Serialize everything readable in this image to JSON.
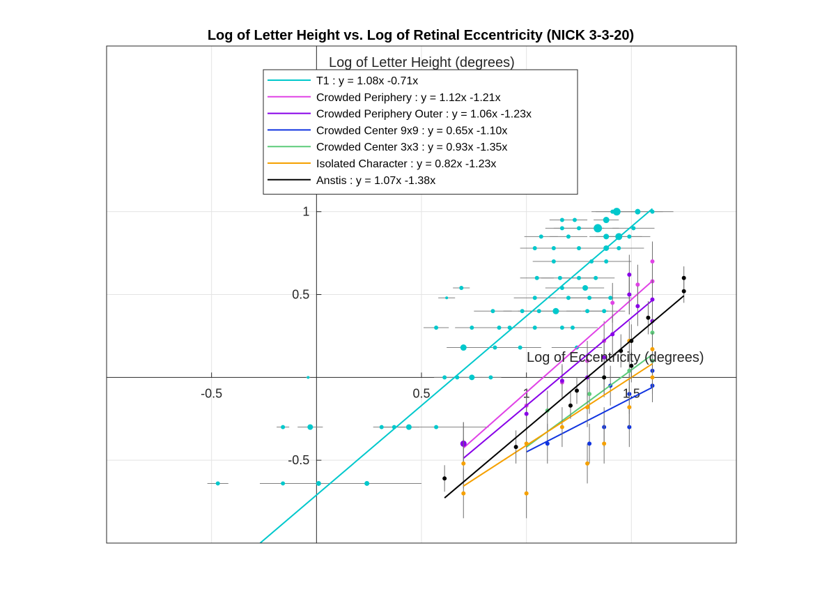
{
  "chart_data": {
    "type": "scatter",
    "title": "Log of Letter Height vs. Log of Retinal Eccentricity (NICK 3-3-20)",
    "xlabel": "Log of Eccentricity (degrees)",
    "ylabel": "Log of Letter Height (degrees)",
    "xlim": [
      -1,
      2
    ],
    "ylim": [
      -1,
      2
    ],
    "grid": true,
    "axes_through_origin": true,
    "x_ticks": [
      {
        "v": -0.5,
        "label": "-0.5"
      },
      {
        "v": 0.5,
        "label": "0.5"
      },
      {
        "v": 1,
        "label": "1"
      },
      {
        "v": 1.5,
        "label": "1.5"
      }
    ],
    "y_ticks": [
      {
        "v": -0.5,
        "label": "-0.5"
      },
      {
        "v": 0.5,
        "label": "0.5"
      },
      {
        "v": 1,
        "label": "1"
      }
    ],
    "legend_position": "top-center",
    "series": [
      {
        "name": "T1",
        "legend": "T1 : y = 1.08x -0.71x",
        "color": "#00c8cc",
        "fit": {
          "slope": 1.08,
          "intercept": -0.71,
          "x_range": [
            -0.27,
            1.6
          ]
        },
        "points": [
          {
            "x": -0.47,
            "y": -0.64,
            "xerr": 0.05,
            "s": 3
          },
          {
            "x": -0.16,
            "y": -0.64,
            "xerr": 0.1,
            "s": 3
          },
          {
            "x": 0.01,
            "y": -0.64,
            "xerr": 0.28,
            "s": 3.5
          },
          {
            "x": 0.24,
            "y": -0.64,
            "xerr": 0.26,
            "s": 3.5
          },
          {
            "x": -0.16,
            "y": -0.3,
            "xerr": 0.03,
            "s": 3
          },
          {
            "x": -0.03,
            "y": -0.3,
            "xerr": 0.06,
            "s": 4
          },
          {
            "x": 0.31,
            "y": -0.3,
            "xerr": 0.04,
            "s": 3
          },
          {
            "x": 0.37,
            "y": -0.3,
            "xerr": 0.05,
            "s": 3
          },
          {
            "x": 0.44,
            "y": -0.3,
            "xerr": 0.05,
            "s": 4
          },
          {
            "x": 0.57,
            "y": -0.3,
            "xerr": 0.25,
            "s": 3
          },
          {
            "x": 0.61,
            "y": 0,
            "xerr": 0.05,
            "s": 3
          },
          {
            "x": 0.67,
            "y": 0,
            "xerr": 0.05,
            "s": 3
          },
          {
            "x": 0.74,
            "y": 0,
            "xerr": 0.05,
            "s": 4
          },
          {
            "x": 0.83,
            "y": 0,
            "xerr": 0.05,
            "s": 3
          },
          {
            "x": -0.04,
            "y": 0,
            "xerr": 0.01,
            "s": 2
          },
          {
            "x": 0.57,
            "y": 0.3,
            "xerr": 0.06,
            "s": 3
          },
          {
            "x": 0.74,
            "y": 0.3,
            "xerr": 0.08,
            "s": 3
          },
          {
            "x": 0.87,
            "y": 0.3,
            "xerr": 0.09,
            "s": 3
          },
          {
            "x": 0.92,
            "y": 0.3,
            "xerr": 0.09,
            "s": 3
          },
          {
            "x": 1.04,
            "y": 0.3,
            "xerr": 0.12,
            "s": 3
          },
          {
            "x": 1.17,
            "y": 0.3,
            "xerr": 0.11,
            "s": 3
          },
          {
            "x": 1.22,
            "y": 0.3,
            "xerr": 0.12,
            "s": 3
          },
          {
            "x": 0.7,
            "y": 0.18,
            "xerr": 0.08,
            "s": 4.5
          },
          {
            "x": 0.85,
            "y": 0.18,
            "xerr": 0.08,
            "s": 3
          },
          {
            "x": 0.97,
            "y": 0.18,
            "xerr": 0.1,
            "s": 3
          },
          {
            "x": 1.24,
            "y": 0.18,
            "xerr": 0.12,
            "s": 3
          },
          {
            "x": 0.84,
            "y": 0.4,
            "xerr": 0.09,
            "s": 3
          },
          {
            "x": 0.98,
            "y": 0.4,
            "xerr": 0.09,
            "s": 3
          },
          {
            "x": 1.06,
            "y": 0.4,
            "xerr": 0.1,
            "s": 3
          },
          {
            "x": 1.14,
            "y": 0.4,
            "xerr": 0.12,
            "s": 4.5
          },
          {
            "x": 1.29,
            "y": 0.4,
            "xerr": 0.1,
            "s": 3
          },
          {
            "x": 1.37,
            "y": 0.4,
            "xerr": 0.1,
            "s": 3
          },
          {
            "x": 1.04,
            "y": 0.48,
            "xerr": 0.1,
            "s": 3
          },
          {
            "x": 1.2,
            "y": 0.48,
            "xerr": 0.1,
            "s": 3
          },
          {
            "x": 1.3,
            "y": 0.48,
            "xerr": 0.1,
            "s": 3
          },
          {
            "x": 1.4,
            "y": 0.48,
            "xerr": 0.1,
            "s": 3
          },
          {
            "x": 1.05,
            "y": 0.6,
            "xerr": 0.08,
            "s": 3
          },
          {
            "x": 1.16,
            "y": 0.6,
            "xerr": 0.09,
            "s": 3
          },
          {
            "x": 1.25,
            "y": 0.6,
            "xerr": 0.08,
            "s": 3
          },
          {
            "x": 1.33,
            "y": 0.6,
            "xerr": 0.09,
            "s": 3
          },
          {
            "x": 1.17,
            "y": 0.54,
            "xerr": 0.08,
            "s": 3
          },
          {
            "x": 1.28,
            "y": 0.54,
            "xerr": 0.09,
            "s": 4
          },
          {
            "x": 1.13,
            "y": 0.7,
            "xerr": 0.1,
            "s": 3
          },
          {
            "x": 1.31,
            "y": 0.7,
            "xerr": 0.12,
            "s": 3
          },
          {
            "x": 1.38,
            "y": 0.7,
            "xerr": 0.12,
            "s": 3
          },
          {
            "x": 1.04,
            "y": 0.78,
            "xerr": 0.07,
            "s": 3
          },
          {
            "x": 1.13,
            "y": 0.78,
            "xerr": 0.09,
            "s": 3
          },
          {
            "x": 1.25,
            "y": 0.78,
            "xerr": 0.1,
            "s": 3
          },
          {
            "x": 1.38,
            "y": 0.78,
            "xerr": 0.11,
            "s": 4
          },
          {
            "x": 1.44,
            "y": 0.78,
            "xerr": 0.12,
            "s": 3
          },
          {
            "x": 1.07,
            "y": 0.85,
            "xerr": 0.08,
            "s": 3
          },
          {
            "x": 1.2,
            "y": 0.85,
            "xerr": 0.09,
            "s": 3
          },
          {
            "x": 1.38,
            "y": 0.85,
            "xerr": 0.08,
            "s": 4
          },
          {
            "x": 1.44,
            "y": 0.85,
            "xerr": 0.11,
            "s": 5
          },
          {
            "x": 1.49,
            "y": 0.85,
            "xerr": 0.1,
            "s": 3
          },
          {
            "x": 1.17,
            "y": 0.9,
            "xerr": 0.08,
            "s": 3
          },
          {
            "x": 1.25,
            "y": 0.9,
            "xerr": 0.12,
            "s": 3
          },
          {
            "x": 1.34,
            "y": 0.9,
            "xerr": 0.1,
            "s": 6
          },
          {
            "x": 1.51,
            "y": 0.9,
            "xerr": 0.1,
            "s": 3
          },
          {
            "x": 1.17,
            "y": 0.95,
            "xerr": 0.06,
            "s": 3
          },
          {
            "x": 1.23,
            "y": 0.95,
            "xerr": 0.06,
            "s": 3
          },
          {
            "x": 1.38,
            "y": 0.95,
            "xerr": 0.06,
            "s": 4.5
          },
          {
            "x": 1.41,
            "y": 1,
            "xerr": 0.1,
            "s": 3
          },
          {
            "x": 1.43,
            "y": 1,
            "xerr": 0.1,
            "s": 5.5
          },
          {
            "x": 1.53,
            "y": 1,
            "xerr": 0.12,
            "s": 4
          },
          {
            "x": 1.6,
            "y": 1,
            "xerr": 0.1,
            "s": 3
          },
          {
            "x": 0.69,
            "y": 0.54,
            "xerr": 0.04,
            "s": 3
          },
          {
            "x": 0.62,
            "y": 0.48,
            "xerr": 0.04,
            "s": 2
          }
        ]
      },
      {
        "name": "Crowded Periphery",
        "legend": "Crowded Periphery : y = 1.12x -1.21x",
        "color": "#e042e6",
        "fit": {
          "slope": 1.12,
          "intercept": -1.21,
          "x_range": [
            0.7,
            1.6
          ]
        },
        "points": [
          {
            "x": 0.7,
            "y": -0.4,
            "yerr": 0.13,
            "s": 3
          },
          {
            "x": 1.0,
            "y": -0.17,
            "yerr": 0.1,
            "s": 3
          },
          {
            "x": 1.17,
            "y": -0.03,
            "yerr": 0.1,
            "s": 3
          },
          {
            "x": 1.29,
            "y": 0.1,
            "yerr": 0.12,
            "s": 3
          },
          {
            "x": 1.37,
            "y": 0.22,
            "yerr": 0.12,
            "s": 3
          },
          {
            "x": 1.41,
            "y": 0.45,
            "yerr": 0.12,
            "s": 3
          },
          {
            "x": 1.49,
            "y": 0.5,
            "yerr": 0.12,
            "s": 3
          },
          {
            "x": 1.53,
            "y": 0.56,
            "yerr": 0.12,
            "s": 3
          },
          {
            "x": 1.6,
            "y": 0.7,
            "yerr": 0.12,
            "s": 3
          },
          {
            "x": 1.6,
            "y": 0.58,
            "yerr": 0.1,
            "s": 3
          }
        ]
      },
      {
        "name": "Crowded Periphery Outer",
        "legend": "Crowded Periphery Outer : y = 1.06x -1.23x",
        "color": "#8800e8",
        "fit": {
          "slope": 1.06,
          "intercept": -1.23,
          "x_range": [
            0.7,
            1.6
          ]
        },
        "points": [
          {
            "x": 0.7,
            "y": -0.4,
            "yerr": 0.13,
            "s": 4.5
          },
          {
            "x": 1.0,
            "y": -0.22,
            "yerr": 0.1,
            "s": 3
          },
          {
            "x": 1.17,
            "y": -0.02,
            "yerr": 0.1,
            "s": 3
          },
          {
            "x": 1.29,
            "y": 0.0,
            "yerr": 0.12,
            "s": 3
          },
          {
            "x": 1.37,
            "y": 0.12,
            "yerr": 0.12,
            "s": 3
          },
          {
            "x": 1.41,
            "y": 0.26,
            "yerr": 0.12,
            "s": 3
          },
          {
            "x": 1.49,
            "y": 0.5,
            "yerr": 0.12,
            "s": 3
          },
          {
            "x": 1.53,
            "y": 0.43,
            "yerr": 0.12,
            "s": 3
          },
          {
            "x": 1.6,
            "y": 0.47,
            "yerr": 0.12,
            "s": 3
          },
          {
            "x": 1.49,
            "y": 0.62,
            "yerr": 0.12,
            "s": 3
          },
          {
            "x": 1.6,
            "y": 0.34,
            "yerr": 0.1,
            "s": 3
          }
        ]
      },
      {
        "name": "Crowded Center 9x9",
        "legend": "Crowded Center 9x9 : y = 0.65x -1.10x",
        "color": "#1034e0",
        "fit": {
          "slope": 0.65,
          "intercept": -1.1,
          "x_range": [
            1.0,
            1.6
          ]
        },
        "points": [
          {
            "x": 1.1,
            "y": -0.4,
            "yerr": 0.12,
            "s": 3
          },
          {
            "x": 1.3,
            "y": -0.4,
            "yerr": 0.12,
            "s": 3
          },
          {
            "x": 1.37,
            "y": -0.3,
            "yerr": 0.12,
            "s": 3
          },
          {
            "x": 1.49,
            "y": -0.3,
            "yerr": 0.12,
            "s": 3
          },
          {
            "x": 1.4,
            "y": -0.05,
            "yerr": 0.12,
            "s": 3
          },
          {
            "x": 1.49,
            "y": -0.1,
            "yerr": 0.12,
            "s": 3
          },
          {
            "x": 1.6,
            "y": -0.05,
            "yerr": 0.1,
            "s": 3
          },
          {
            "x": 1.6,
            "y": 0.04,
            "yerr": 0.1,
            "s": 3
          }
        ]
      },
      {
        "name": "Crowded Center 3x3",
        "legend": "Crowded Center 3x3 : y = 0.93x -1.35x",
        "color": "#5ccb7a",
        "fit": {
          "slope": 0.93,
          "intercept": -1.35,
          "x_range": [
            1.0,
            1.6
          ]
        },
        "points": [
          {
            "x": 1.1,
            "y": -0.2,
            "yerr": 0.12,
            "s": 3
          },
          {
            "x": 1.3,
            "y": -0.1,
            "yerr": 0.12,
            "s": 3
          },
          {
            "x": 1.37,
            "y": 0.0,
            "yerr": 0.12,
            "s": 3
          },
          {
            "x": 1.49,
            "y": 0.04,
            "yerr": 0.12,
            "s": 3
          },
          {
            "x": 1.6,
            "y": 0.27,
            "yerr": 0.12,
            "s": 3
          },
          {
            "x": 1.6,
            "y": 0.1,
            "yerr": 0.1,
            "s": 3
          }
        ]
      },
      {
        "name": "Isolated Character",
        "legend": "Isolated Character : y = 0.82x -1.23x",
        "color": "#f5a000",
        "fit": {
          "slope": 0.82,
          "intercept": -1.23,
          "x_range": [
            0.7,
            1.6
          ]
        },
        "points": [
          {
            "x": 0.7,
            "y": -0.52,
            "yerr": 0.15,
            "s": 3
          },
          {
            "x": 0.7,
            "y": -0.7,
            "yerr": 0.15,
            "s": 3
          },
          {
            "x": 1.0,
            "y": -0.4,
            "yerr": 0.15,
            "s": 3
          },
          {
            "x": 1.0,
            "y": -0.7,
            "yerr": 0.15,
            "s": 3
          },
          {
            "x": 1.17,
            "y": -0.3,
            "yerr": 0.12,
            "s": 3
          },
          {
            "x": 1.29,
            "y": -0.52,
            "yerr": 0.12,
            "s": 3
          },
          {
            "x": 1.29,
            "y": -0.18,
            "yerr": 0.12,
            "s": 3
          },
          {
            "x": 1.37,
            "y": -0.4,
            "yerr": 0.12,
            "s": 3
          },
          {
            "x": 1.49,
            "y": -0.18,
            "yerr": 0.12,
            "s": 3
          },
          {
            "x": 1.49,
            "y": 0.22,
            "yerr": 0.12,
            "s": 3
          },
          {
            "x": 1.6,
            "y": 0.0,
            "yerr": 0.1,
            "s": 3
          },
          {
            "x": 1.6,
            "y": 0.17,
            "yerr": 0.1,
            "s": 3
          }
        ]
      },
      {
        "name": "Anstis",
        "legend": "Anstis : y = 1.07x -1.38x",
        "color": "#000000",
        "fit": {
          "slope": 1.07,
          "intercept": -1.38,
          "x_range": [
            0.61,
            1.75
          ]
        },
        "points": [
          {
            "x": 0.61,
            "y": -0.61,
            "yerr": 0.08,
            "s": 3
          },
          {
            "x": 0.95,
            "y": -0.42,
            "yerr": 0.1,
            "s": 3
          },
          {
            "x": 1.21,
            "y": -0.17,
            "yerr": 0.08,
            "s": 3
          },
          {
            "x": 1.24,
            "y": -0.08,
            "yerr": 0.08,
            "s": 3
          },
          {
            "x": 1.37,
            "y": 0.0,
            "yerr": 0.1,
            "s": 3
          },
          {
            "x": 1.45,
            "y": 0.16,
            "yerr": 0.1,
            "s": 3
          },
          {
            "x": 1.5,
            "y": 0.22,
            "yerr": 0.1,
            "s": 3
          },
          {
            "x": 1.5,
            "y": 0.07,
            "yerr": 0.1,
            "s": 3
          },
          {
            "x": 1.58,
            "y": 0.36,
            "yerr": 0.1,
            "s": 3
          },
          {
            "x": 1.75,
            "y": 0.6,
            "yerr": 0.07,
            "s": 3
          },
          {
            "x": 1.75,
            "y": 0.52,
            "yerr": 0.07,
            "s": 3
          }
        ]
      }
    ]
  }
}
